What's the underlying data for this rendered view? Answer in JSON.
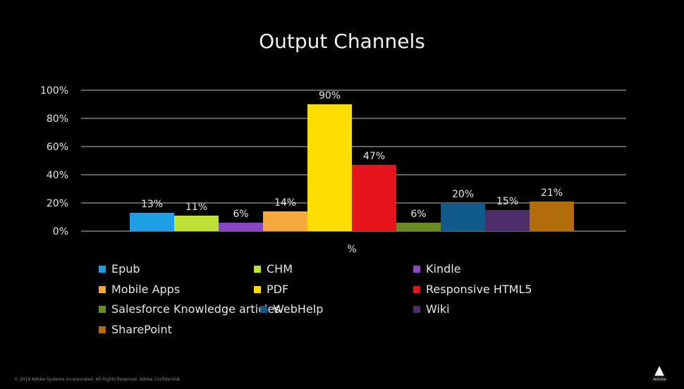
{
  "chart_data": {
    "type": "bar",
    "title": "Output Channels",
    "xlabel": "%",
    "ylabel": "",
    "ylim": [
      0,
      100
    ],
    "yticks": [
      "0%",
      "20%",
      "40%",
      "60%",
      "80%",
      "100%"
    ],
    "tick_values": [
      0,
      20,
      40,
      60,
      80,
      100
    ],
    "grid": true,
    "legend_position": "bottom",
    "series": [
      {
        "name": "Epub",
        "value": 13,
        "label": "13%",
        "color": "#1e9fe3"
      },
      {
        "name": "CHM",
        "value": 11,
        "label": "11%",
        "color": "#bfe037"
      },
      {
        "name": "Kindle",
        "value": 6,
        "label": "6%",
        "color": "#8b46c4"
      },
      {
        "name": "Mobile Apps",
        "value": 14,
        "label": "14%",
        "color": "#f7a83c"
      },
      {
        "name": "PDF",
        "value": 90,
        "label": "90%",
        "color": "#ffdd00"
      },
      {
        "name": "Responsive HTML5",
        "value": 47,
        "label": "47%",
        "color": "#e8141c"
      },
      {
        "name": "Salesforce Knowledge articles",
        "value": 6,
        "label": "6%",
        "color": "#6b8b25"
      },
      {
        "name": "WebHelp",
        "value": 20,
        "label": "20%",
        "color": "#115b8c"
      },
      {
        "name": "Wiki",
        "value": 15,
        "label": "15%",
        "color": "#4e2e6a"
      },
      {
        "name": "SharePoint",
        "value": 21,
        "label": "21%",
        "color": "#b26e0a"
      }
    ]
  },
  "legend": {
    "labels": [
      "Epub",
      "CHM",
      "Kindle",
      "Mobile Apps",
      "PDF",
      "Responsive HTML5",
      "Salesforce Knowledge articles",
      "WebHelp",
      "Wiki",
      "SharePoint"
    ]
  },
  "footer": {
    "copyright": "© 2019 Adobe Systems Incorporated. All Rights Reserved. Adobe Confidential.",
    "logo_text": "Adobe"
  }
}
